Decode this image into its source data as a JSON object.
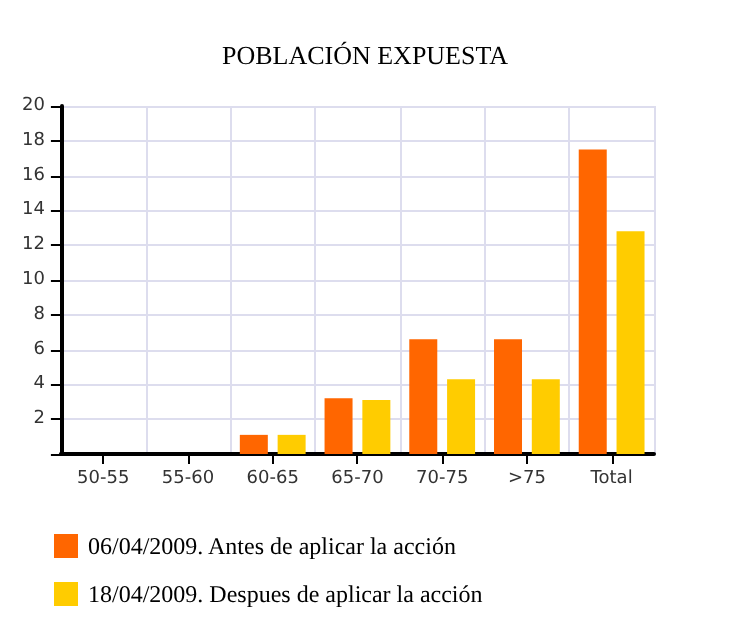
{
  "chart_data": {
    "type": "bar",
    "title": "POBLACIÓN EXPUESTA",
    "categories": [
      "50-55",
      "55-60",
      "60-65",
      "65-70",
      "70-75",
      ">75",
      "Total"
    ],
    "series": [
      {
        "name": "06/04/2009. Antes de aplicar la acción",
        "color": "#ff6600",
        "values": [
          0,
          0,
          1.1,
          3.2,
          6.6,
          6.6,
          17.5
        ]
      },
      {
        "name": "18/04/2009. Despues de aplicar la acción",
        "color": "#ffcc00",
        "values": [
          0,
          0,
          1.1,
          3.1,
          4.3,
          4.3,
          12.8
        ]
      }
    ],
    "ylim": [
      0,
      20
    ],
    "yticks": [
      {
        "value": 0,
        "label": null
      },
      2,
      4,
      6,
      8,
      10,
      12,
      14,
      16,
      18,
      20
    ],
    "grid": true,
    "legend": "bottom left"
  }
}
